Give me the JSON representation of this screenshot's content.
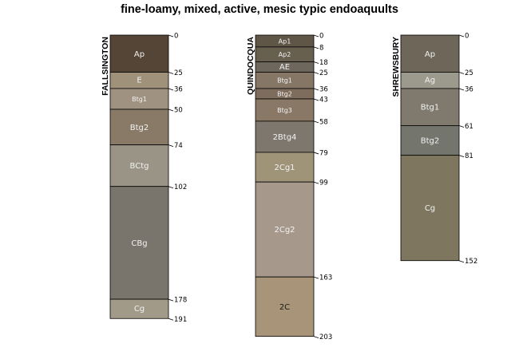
{
  "title": "fine-loamy, mixed, active, mesic typic endoaquults",
  "profiles": [
    {
      "name": "FALLSINGTON",
      "horizons": [
        {
          "name": "Ap",
          "top": 0,
          "bottom": 25,
          "color": "#544536"
        },
        {
          "name": "E",
          "top": 25,
          "bottom": 36,
          "color": "#a0927a"
        },
        {
          "name": "Btg1",
          "top": 36,
          "bottom": 50,
          "color": "#a09280"
        },
        {
          "name": "Btg2",
          "top": 50,
          "bottom": 74,
          "color": "#887a66"
        },
        {
          "name": "BCtg",
          "top": 74,
          "bottom": 102,
          "color": "#9a9486"
        },
        {
          "name": "CBg",
          "top": 102,
          "bottom": 178,
          "color": "#7a756c"
        },
        {
          "name": "Cg",
          "top": 178,
          "bottom": 191,
          "color": "#a29a88"
        }
      ]
    },
    {
      "name": "QUINDOCQUA",
      "horizons": [
        {
          "name": "Ap1",
          "top": 0,
          "bottom": 8,
          "color": "#605648"
        },
        {
          "name": "Ap2",
          "top": 8,
          "bottom": 18,
          "color": "#68604f"
        },
        {
          "name": "AE",
          "top": 18,
          "bottom": 25,
          "color": "#6e675e"
        },
        {
          "name": "Btg1",
          "top": 25,
          "bottom": 36,
          "color": "#857666"
        },
        {
          "name": "Btg2",
          "top": 36,
          "bottom": 43,
          "color": "#7e6c5c"
        },
        {
          "name": "Btg3",
          "top": 43,
          "bottom": 58,
          "color": "#8a7866"
        },
        {
          "name": "2Btg4",
          "top": 58,
          "bottom": 79,
          "color": "#7e776e"
        },
        {
          "name": "2Cg1",
          "top": 79,
          "bottom": 99,
          "color": "#a09478"
        },
        {
          "name": "2Cg2",
          "top": 99,
          "bottom": 163,
          "color": "#a6988a"
        },
        {
          "name": "2C",
          "top": 163,
          "bottom": 203,
          "color": "#a89478",
          "dark_label": true
        }
      ]
    },
    {
      "name": "SHREWSBURY",
      "horizons": [
        {
          "name": "Ap",
          "top": 0,
          "bottom": 25,
          "color": "#6e6658"
        },
        {
          "name": "Ag",
          "top": 25,
          "bottom": 36,
          "color": "#9c9a8c"
        },
        {
          "name": "Btg1",
          "top": 36,
          "bottom": 61,
          "color": "#807a6e"
        },
        {
          "name": "Btg2",
          "top": 61,
          "bottom": 81,
          "color": "#74766e"
        },
        {
          "name": "Cg",
          "top": 81,
          "bottom": 152,
          "color": "#7e765e"
        }
      ]
    }
  ]
}
